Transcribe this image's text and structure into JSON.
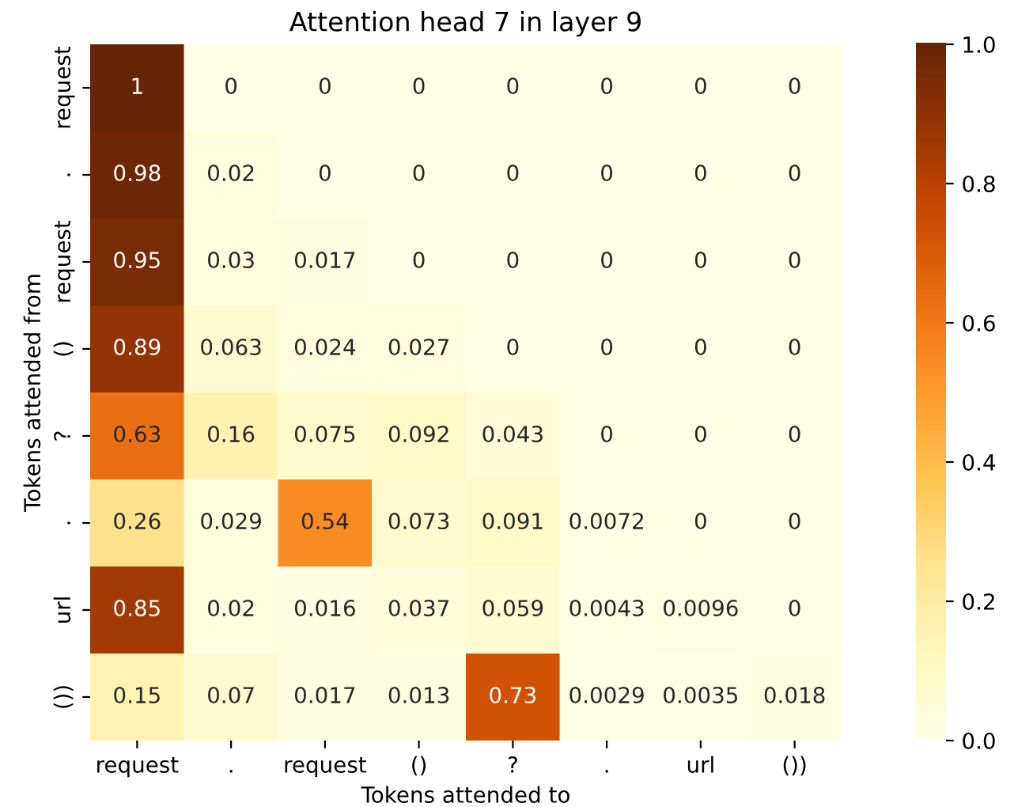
{
  "chart_data": {
    "type": "heatmap",
    "title": "Attention head 7 in layer 9",
    "xlabel": "Tokens attended to",
    "ylabel": "Tokens attended from",
    "categories": [
      "request",
      ".",
      "request",
      "()",
      "?",
      ".",
      "url",
      "())"
    ],
    "y_categories": [
      "request",
      ".",
      "request",
      "()",
      "?",
      ".",
      "url",
      "())"
    ],
    "cells": [
      [
        1,
        0,
        0,
        0,
        0,
        0,
        0,
        0
      ],
      [
        0.98,
        0.02,
        0,
        0,
        0,
        0,
        0,
        0
      ],
      [
        0.95,
        0.03,
        0.017,
        0,
        0,
        0,
        0,
        0
      ],
      [
        0.89,
        0.063,
        0.024,
        0.027,
        0,
        0,
        0,
        0
      ],
      [
        0.63,
        0.16,
        0.075,
        0.092,
        0.043,
        0,
        0,
        0
      ],
      [
        0.26,
        0.029,
        0.54,
        0.073,
        0.091,
        0.0072,
        0,
        0
      ],
      [
        0.85,
        0.02,
        0.016,
        0.037,
        0.059,
        0.0043,
        0.0096,
        0
      ],
      [
        0.15,
        0.07,
        0.017,
        0.013,
        0.73,
        0.0029,
        0.0035,
        0.018
      ]
    ],
    "clim": [
      0,
      1
    ],
    "cticks": [
      {
        "value": 0,
        "label": "0.0"
      },
      {
        "value": 0.2,
        "label": "0.2"
      },
      {
        "value": 0.4,
        "label": "0.4"
      },
      {
        "value": 0.6,
        "label": "0.6"
      },
      {
        "value": 0.8,
        "label": "0.8"
      },
      {
        "value": 1,
        "label": "1.0"
      }
    ],
    "data_labels": true
  }
}
